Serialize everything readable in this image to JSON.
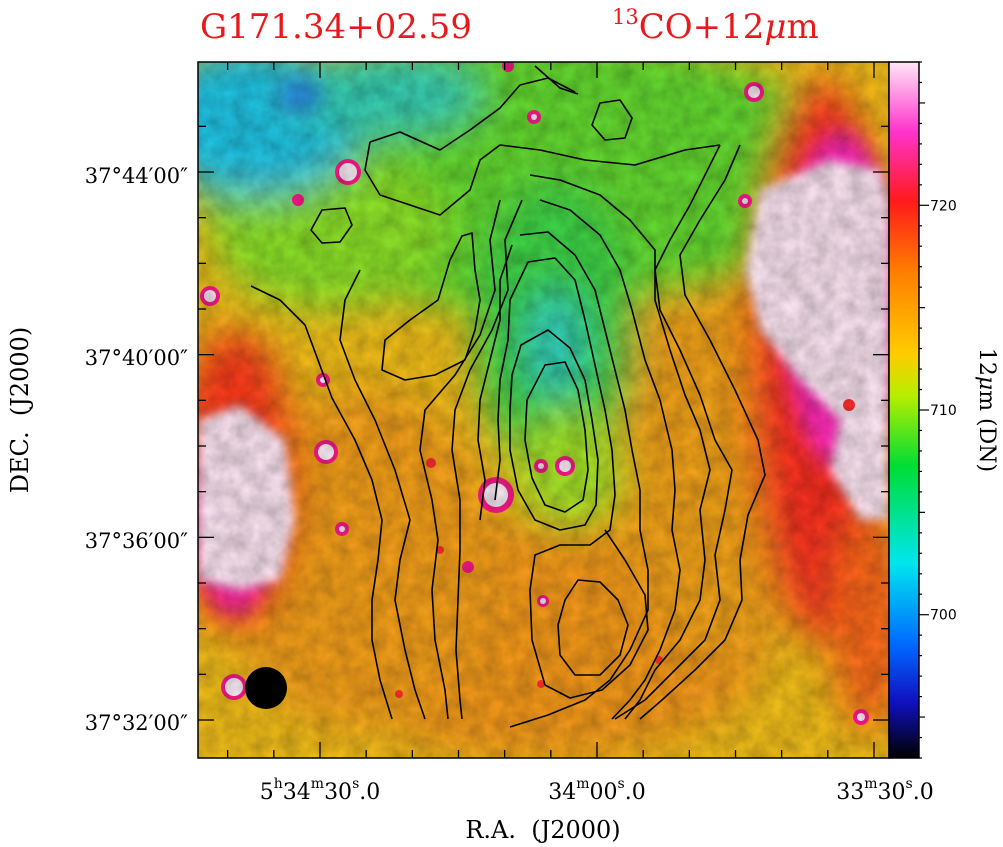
{
  "chart_data": {
    "type": "contour-map",
    "title_left": "G171.34+02.59",
    "title_right_sup": "13",
    "title_right_main": "CO+12",
    "title_right_mu": "μ",
    "title_right_unit": "m",
    "xlabel": "R.A.  (J2000)",
    "ylabel": "DEC.  (J2000)",
    "x_ticks": [
      {
        "h": "5",
        "hsup": "h",
        "m": "34",
        "msup": "m",
        "s": "30",
        "ssup": "s",
        "frac": ".0"
      },
      {
        "h": "",
        "hsup": "",
        "m": "34",
        "msup": "m",
        "s": "00",
        "ssup": "s",
        "frac": ".0"
      },
      {
        "h": "",
        "hsup": "",
        "m": "33",
        "msup": "m",
        "s": "30",
        "ssup": "s",
        "frac": ".0"
      }
    ],
    "y_ticks": [
      "37°44′00″",
      "37°40′00″",
      "37°36′00″",
      "37°32′00″"
    ],
    "colorbar": {
      "label_main": "12",
      "label_mu": "μ",
      "label_rest": "m (DN)",
      "ticks": [
        720,
        710,
        700
      ],
      "range": [
        693,
        727
      ]
    },
    "colormap": [
      "#000000",
      "#1010c0",
      "#0066ff",
      "#00e6ee",
      "#00dd33",
      "#b5ee00",
      "#ffcc00",
      "#ff7d00",
      "#ff1a1a",
      "#ff33cc",
      "#ffe6f7"
    ],
    "beam": "filled-circle",
    "contours": "13CO integrated intensity (black lines)"
  }
}
